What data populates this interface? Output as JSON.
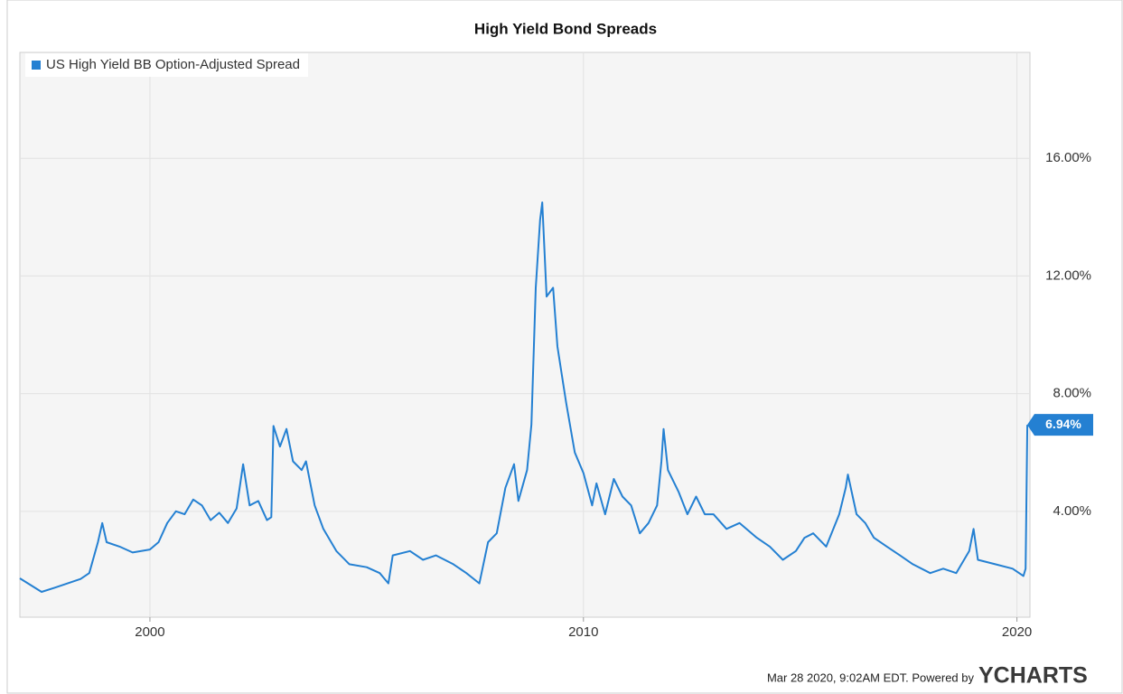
{
  "chart_data": {
    "type": "line",
    "title": "High Yield Bond Spreads",
    "footer": "Mar 28 2020, 9:02AM EDT.  Powered by",
    "brand": "YCHARTS",
    "xlim": [
      1997.0,
      2020.3
    ],
    "xticks": [
      2000,
      2010,
      2020
    ],
    "ylim": [
      0.4,
      19.6
    ],
    "yticks": [
      {
        "value": 4,
        "label": "4.00%"
      },
      {
        "value": 8,
        "label": "8.00%"
      },
      {
        "value": 12,
        "label": "12.00%"
      },
      {
        "value": 16,
        "label": "16.00%"
      }
    ],
    "grid": true,
    "legend": "top-left",
    "x": [
      1997.0,
      1997.5,
      1997.8,
      1998.0,
      1998.4,
      1998.6,
      1998.8,
      1998.9,
      1999.0,
      1999.3,
      1999.6,
      2000.0,
      2000.2,
      2000.4,
      2000.6,
      2000.8,
      2001.0,
      2001.2,
      2001.4,
      2001.6,
      2001.8,
      2002.0,
      2002.15,
      2002.3,
      2002.5,
      2002.7,
      2002.8,
      2002.85,
      2003.0,
      2003.15,
      2003.3,
      2003.5,
      2003.6,
      2003.8,
      2004.0,
      2004.3,
      2004.6,
      2005.0,
      2005.3,
      2005.5,
      2005.6,
      2006.0,
      2006.3,
      2006.6,
      2007.0,
      2007.3,
      2007.6,
      2007.8,
      2008.0,
      2008.2,
      2008.4,
      2008.5,
      2008.7,
      2008.8,
      2008.9,
      2009.0,
      2009.05,
      2009.15,
      2009.3,
      2009.4,
      2009.6,
      2009.8,
      2010.0,
      2010.2,
      2010.3,
      2010.5,
      2010.7,
      2010.9,
      2011.1,
      2011.3,
      2011.5,
      2011.7,
      2011.8,
      2011.85,
      2011.95,
      2012.2,
      2012.4,
      2012.6,
      2012.8,
      2013.0,
      2013.3,
      2013.6,
      2014.0,
      2014.3,
      2014.6,
      2014.9,
      2015.1,
      2015.3,
      2015.6,
      2015.9,
      2016.05,
      2016.1,
      2016.3,
      2016.5,
      2016.7,
      2017.0,
      2017.3,
      2017.6,
      2018.0,
      2018.3,
      2018.6,
      2018.9,
      2019.0,
      2019.1,
      2019.5,
      2019.9,
      2020.15,
      2020.2,
      2020.24
    ],
    "series": [
      {
        "name": "US High Yield BB Option-Adjusted Spread",
        "color": "#2480d2",
        "end_label": "6.94%",
        "values": [
          1.72,
          1.26,
          1.4,
          1.5,
          1.7,
          1.9,
          2.95,
          3.6,
          2.95,
          2.8,
          2.6,
          2.7,
          2.95,
          3.6,
          4.0,
          3.9,
          4.4,
          4.2,
          3.7,
          3.95,
          3.6,
          4.1,
          5.6,
          4.2,
          4.35,
          3.7,
          3.8,
          6.9,
          6.2,
          6.8,
          5.7,
          5.4,
          5.7,
          4.2,
          3.4,
          2.65,
          2.2,
          2.1,
          1.9,
          1.55,
          2.5,
          2.65,
          2.35,
          2.5,
          2.2,
          1.9,
          1.55,
          2.95,
          3.25,
          4.8,
          5.6,
          4.35,
          5.4,
          6.95,
          11.6,
          13.9,
          14.5,
          11.3,
          11.6,
          9.6,
          7.7,
          6.0,
          5.3,
          4.2,
          4.95,
          3.9,
          5.1,
          4.5,
          4.2,
          3.25,
          3.6,
          4.2,
          5.7,
          6.8,
          5.4,
          4.65,
          3.9,
          4.5,
          3.9,
          3.9,
          3.4,
          3.6,
          3.1,
          2.8,
          2.35,
          2.65,
          3.1,
          3.25,
          2.8,
          3.9,
          4.8,
          5.25,
          3.9,
          3.6,
          3.1,
          2.8,
          2.5,
          2.2,
          1.9,
          2.05,
          1.9,
          2.65,
          3.4,
          2.35,
          2.2,
          2.05,
          1.8,
          2.05,
          6.94
        ]
      }
    ]
  }
}
